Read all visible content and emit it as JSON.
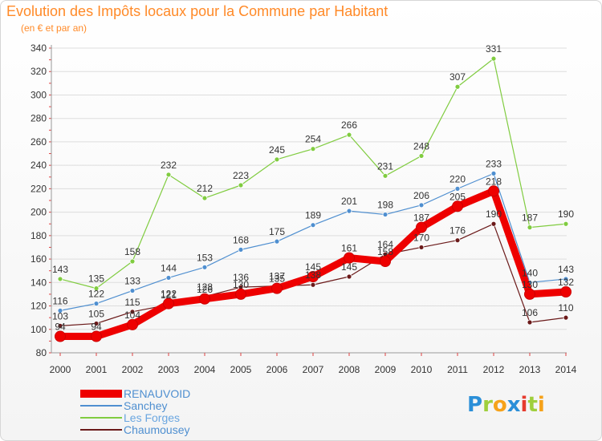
{
  "header": {
    "title": "Evolution des Impôts locaux pour la Commune par Habitant",
    "subtitle": "(en € et par an)"
  },
  "logo": {
    "letters": [
      {
        "ch": "P",
        "color": "#2b8fd8"
      },
      {
        "ch": "r",
        "color": "#9fcf3c"
      },
      {
        "ch": "o",
        "color": "#f6a21a"
      },
      {
        "ch": "x",
        "color": "#2b8fd8"
      },
      {
        "ch": "i",
        "color": "#e63b2e"
      },
      {
        "ch": "t",
        "color": "#9fcf3c"
      },
      {
        "ch": "i",
        "color": "#f6a21a"
      }
    ]
  },
  "chart_data": {
    "type": "line",
    "title": "Evolution des Impôts locaux pour la Commune par Habitant",
    "subtitle": "(en € et par an)",
    "x": [
      "2000",
      "2001",
      "2002",
      "2003",
      "2004",
      "2005",
      "2006",
      "2007",
      "2008",
      "2009",
      "2010",
      "2011",
      "2012",
      "2013",
      "2014"
    ],
    "ylim": [
      80,
      340
    ],
    "yticks": [
      80,
      100,
      120,
      140,
      160,
      180,
      200,
      220,
      240,
      260,
      280,
      300,
      320,
      340
    ],
    "grid": "horizontal",
    "legend_position": "bottom-left",
    "series": [
      {
        "name": "RENAUVOID",
        "color": "#ee0000",
        "values": [
          94,
          94,
          104,
          122,
          126,
          130,
          135,
          145,
          161,
          158,
          187,
          205,
          218,
          130,
          132
        ]
      },
      {
        "name": "Sanchey",
        "color": "#4f8fd0",
        "values": [
          116,
          122,
          133,
          144,
          153,
          168,
          175,
          189,
          201,
          198,
          206,
          220,
          233,
          140,
          143
        ]
      },
      {
        "name": "Les Forges",
        "color": "#80cc40",
        "values": [
          143,
          135,
          158,
          232,
          212,
          223,
          245,
          254,
          266,
          231,
          248,
          307,
          331,
          187,
          190
        ]
      },
      {
        "name": "Chaumousey",
        "color": "#6b1a1a",
        "values": [
          103,
          105,
          115,
          121,
          128,
          136,
          137,
          138,
          145,
          164,
          170,
          176,
          190,
          106,
          110
        ]
      }
    ]
  }
}
